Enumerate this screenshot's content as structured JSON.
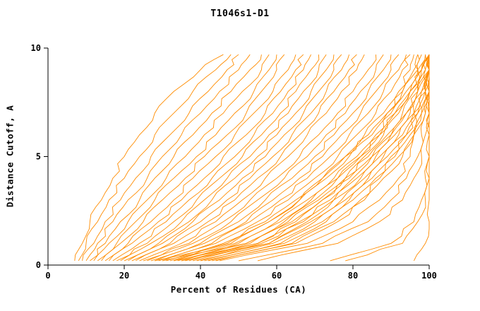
{
  "page": {
    "title": "T1046s1-D1"
  },
  "chart_data": {
    "type": "line",
    "title": "T1046s1-D1",
    "xlabel": "Percent of Residues (CA)",
    "ylabel": "Distance Cutoff, A",
    "xlim": [
      0,
      100
    ],
    "ylim": [
      0,
      10
    ],
    "x_ticks": [
      0,
      20,
      40,
      60,
      80,
      100
    ],
    "y_ticks": [
      0,
      5,
      10
    ],
    "grid": false,
    "legend": "none",
    "line_color": "#ff8c00",
    "axis_color": "#000000",
    "background": "#ffffff",
    "y_samples": [
      0.2,
      1,
      2,
      3,
      4,
      5,
      6,
      7,
      8,
      9,
      9.7
    ],
    "curves_x": [
      [
        7,
        9,
        11,
        14,
        17,
        20,
        24,
        28,
        33,
        40,
        46
      ],
      [
        8,
        10,
        13,
        16,
        20,
        24,
        28,
        33,
        38,
        44,
        48
      ],
      [
        9,
        12,
        15,
        19,
        23,
        27,
        32,
        37,
        42,
        47,
        50
      ],
      [
        10,
        13,
        17,
        21,
        26,
        30,
        35,
        40,
        45,
        50,
        53
      ],
      [
        11,
        15,
        19,
        24,
        28,
        33,
        38,
        43,
        48,
        53,
        56
      ],
      [
        12,
        16,
        21,
        26,
        31,
        36,
        41,
        46,
        51,
        56,
        58
      ],
      [
        13,
        18,
        23,
        28,
        33,
        39,
        44,
        49,
        54,
        58,
        60
      ],
      [
        14,
        19,
        25,
        30,
        36,
        41,
        47,
        52,
        56,
        60,
        62
      ],
      [
        15,
        21,
        27,
        33,
        38,
        44,
        49,
        54,
        59,
        63,
        65
      ],
      [
        16,
        22,
        29,
        35,
        41,
        46,
        52,
        57,
        61,
        65,
        67
      ],
      [
        17,
        24,
        31,
        37,
        43,
        49,
        54,
        59,
        63,
        67,
        69
      ],
      [
        18,
        26,
        33,
        39,
        45,
        51,
        56,
        61,
        65,
        69,
        71
      ],
      [
        19,
        27,
        35,
        41,
        47,
        53,
        58,
        63,
        67,
        71,
        73
      ],
      [
        20,
        29,
        37,
        43,
        49,
        55,
        60,
        65,
        69,
        73,
        75
      ],
      [
        21,
        30,
        38,
        45,
        51,
        57,
        62,
        67,
        71,
        75,
        77
      ],
      [
        22,
        32,
        40,
        47,
        53,
        59,
        64,
        69,
        73,
        77,
        79
      ],
      [
        23,
        33,
        42,
        49,
        55,
        61,
        66,
        71,
        75,
        79,
        81
      ],
      [
        24,
        35,
        44,
        51,
        57,
        63,
        68,
        73,
        77,
        81,
        83
      ],
      [
        25,
        37,
        46,
        53,
        60,
        66,
        71,
        76,
        80,
        84,
        86
      ],
      [
        26,
        38,
        48,
        55,
        62,
        68,
        73,
        78,
        82,
        86,
        88
      ],
      [
        27,
        40,
        50,
        57,
        64,
        70,
        75,
        80,
        84,
        88,
        90
      ],
      [
        28,
        41,
        52,
        59,
        66,
        72,
        77,
        82,
        86,
        90,
        92
      ],
      [
        29,
        43,
        53,
        61,
        68,
        74,
        79,
        84,
        88,
        92,
        94
      ],
      [
        30,
        44,
        55,
        63,
        70,
        76,
        81,
        86,
        90,
        93,
        95
      ],
      [
        31,
        46,
        57,
        65,
        72,
        78,
        83,
        88,
        92,
        95,
        96
      ],
      [
        32,
        47,
        58,
        66,
        73,
        79,
        85,
        89,
        93,
        96,
        97
      ],
      [
        33,
        49,
        60,
        68,
        75,
        81,
        86,
        90,
        94,
        97,
        98
      ],
      [
        34,
        50,
        61,
        69,
        76,
        82,
        87,
        91,
        95,
        98,
        99
      ],
      [
        35,
        52,
        63,
        71,
        78,
        84,
        89,
        93,
        96,
        99,
        100
      ],
      [
        36,
        53,
        64,
        72,
        79,
        85,
        90,
        94,
        97,
        99,
        100
      ],
      [
        37,
        55,
        66,
        74,
        81,
        86,
        91,
        95,
        98,
        100,
        100
      ],
      [
        38,
        56,
        67,
        75,
        82,
        87,
        92,
        96,
        98,
        100,
        100
      ],
      [
        39,
        58,
        69,
        77,
        83,
        88,
        93,
        96,
        99,
        100,
        100
      ],
      [
        40,
        59,
        70,
        78,
        84,
        89,
        94,
        97,
        99,
        100,
        100
      ],
      [
        41,
        61,
        72,
        79,
        85,
        90,
        94,
        97,
        99,
        100,
        100
      ],
      [
        42,
        62,
        73,
        80,
        86,
        91,
        95,
        98,
        100,
        100,
        100
      ],
      [
        43,
        64,
        75,
        82,
        87,
        92,
        96,
        98,
        100,
        100,
        100
      ],
      [
        44,
        65,
        76,
        83,
        88,
        93,
        96,
        99,
        100,
        100,
        100
      ],
      [
        33,
        55,
        65,
        72,
        78,
        83,
        88,
        92,
        95,
        98,
        100
      ],
      [
        35,
        58,
        68,
        75,
        80,
        85,
        90,
        94,
        97,
        100,
        100
      ],
      [
        30,
        52,
        62,
        70,
        76,
        82,
        87,
        91,
        95,
        98,
        100
      ],
      [
        28,
        48,
        58,
        66,
        72,
        78,
        84,
        89,
        93,
        97,
        99
      ],
      [
        45,
        68,
        80,
        87,
        92,
        95,
        96,
        96,
        97,
        97,
        97
      ],
      [
        50,
        72,
        84,
        90,
        94,
        97,
        98,
        99,
        99,
        100,
        100
      ],
      [
        55,
        76,
        87,
        93,
        96,
        98,
        99,
        100,
        100,
        100,
        100
      ],
      [
        74,
        90,
        96,
        98,
        99,
        100,
        100,
        100,
        100,
        100,
        100
      ],
      [
        78,
        93,
        97,
        99,
        100,
        100,
        100,
        100,
        100,
        100,
        100
      ],
      [
        96,
        99,
        100,
        100,
        100,
        100,
        100,
        100,
        100,
        100,
        100
      ]
    ]
  }
}
